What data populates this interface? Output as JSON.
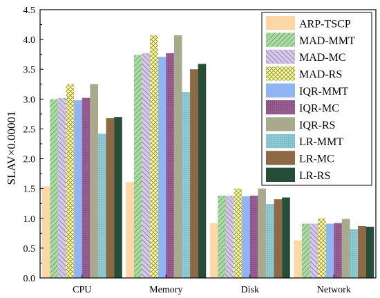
{
  "chart_data": {
    "type": "bar",
    "categories": [
      "CPU",
      "Memory",
      "Disk",
      "Network"
    ],
    "ylabel": "SLAV×0.00001",
    "xlabel": "",
    "ylim": [
      0,
      4.5
    ],
    "yticks": [
      "0.0",
      "0.5",
      "1.0",
      "1.5",
      "2.0",
      "2.5",
      "3.0",
      "3.5",
      "4.0",
      "4.5"
    ],
    "legend_position": "top-right",
    "grid": false,
    "series": [
      {
        "name": "ARP-TSCP",
        "color": "#fdd7a5",
        "pattern": "solid",
        "values": [
          1.54,
          1.61,
          0.92,
          0.63
        ]
      },
      {
        "name": "MAD-MMT",
        "color": "#a9dba3",
        "pattern": "diag-right",
        "values": [
          3.0,
          3.74,
          1.38,
          0.91
        ]
      },
      {
        "name": "MAD-MC",
        "color": "#d5c8e8",
        "pattern": "diag-left",
        "values": [
          3.02,
          3.77,
          1.38,
          0.91
        ]
      },
      {
        "name": "MAD-RS",
        "color": "#feffa6",
        "pattern": "cross",
        "values": [
          3.25,
          4.07,
          1.5,
          1.0
        ]
      },
      {
        "name": "IQR-MMT",
        "color": "#8fb5f2",
        "pattern": "solid",
        "values": [
          2.98,
          3.71,
          1.37,
          0.91
        ]
      },
      {
        "name": "IQR-MC",
        "color": "#9a5d94",
        "pattern": "dots",
        "values": [
          3.02,
          3.77,
          1.38,
          0.92
        ]
      },
      {
        "name": "IQR-RS",
        "color": "#a9a98e",
        "pattern": "solid",
        "values": [
          3.25,
          4.07,
          1.5,
          0.99
        ]
      },
      {
        "name": "LR-MMT",
        "color": "#92cfd9",
        "pattern": "grid",
        "values": [
          2.42,
          3.12,
          1.24,
          0.82
        ]
      },
      {
        "name": "LR-MC",
        "color": "#8d6a45",
        "pattern": "solid",
        "values": [
          2.68,
          3.5,
          1.32,
          0.87
        ]
      },
      {
        "name": "LR-RS",
        "color": "#264d38",
        "pattern": "solid",
        "values": [
          2.7,
          3.59,
          1.35,
          0.86
        ]
      }
    ]
  }
}
